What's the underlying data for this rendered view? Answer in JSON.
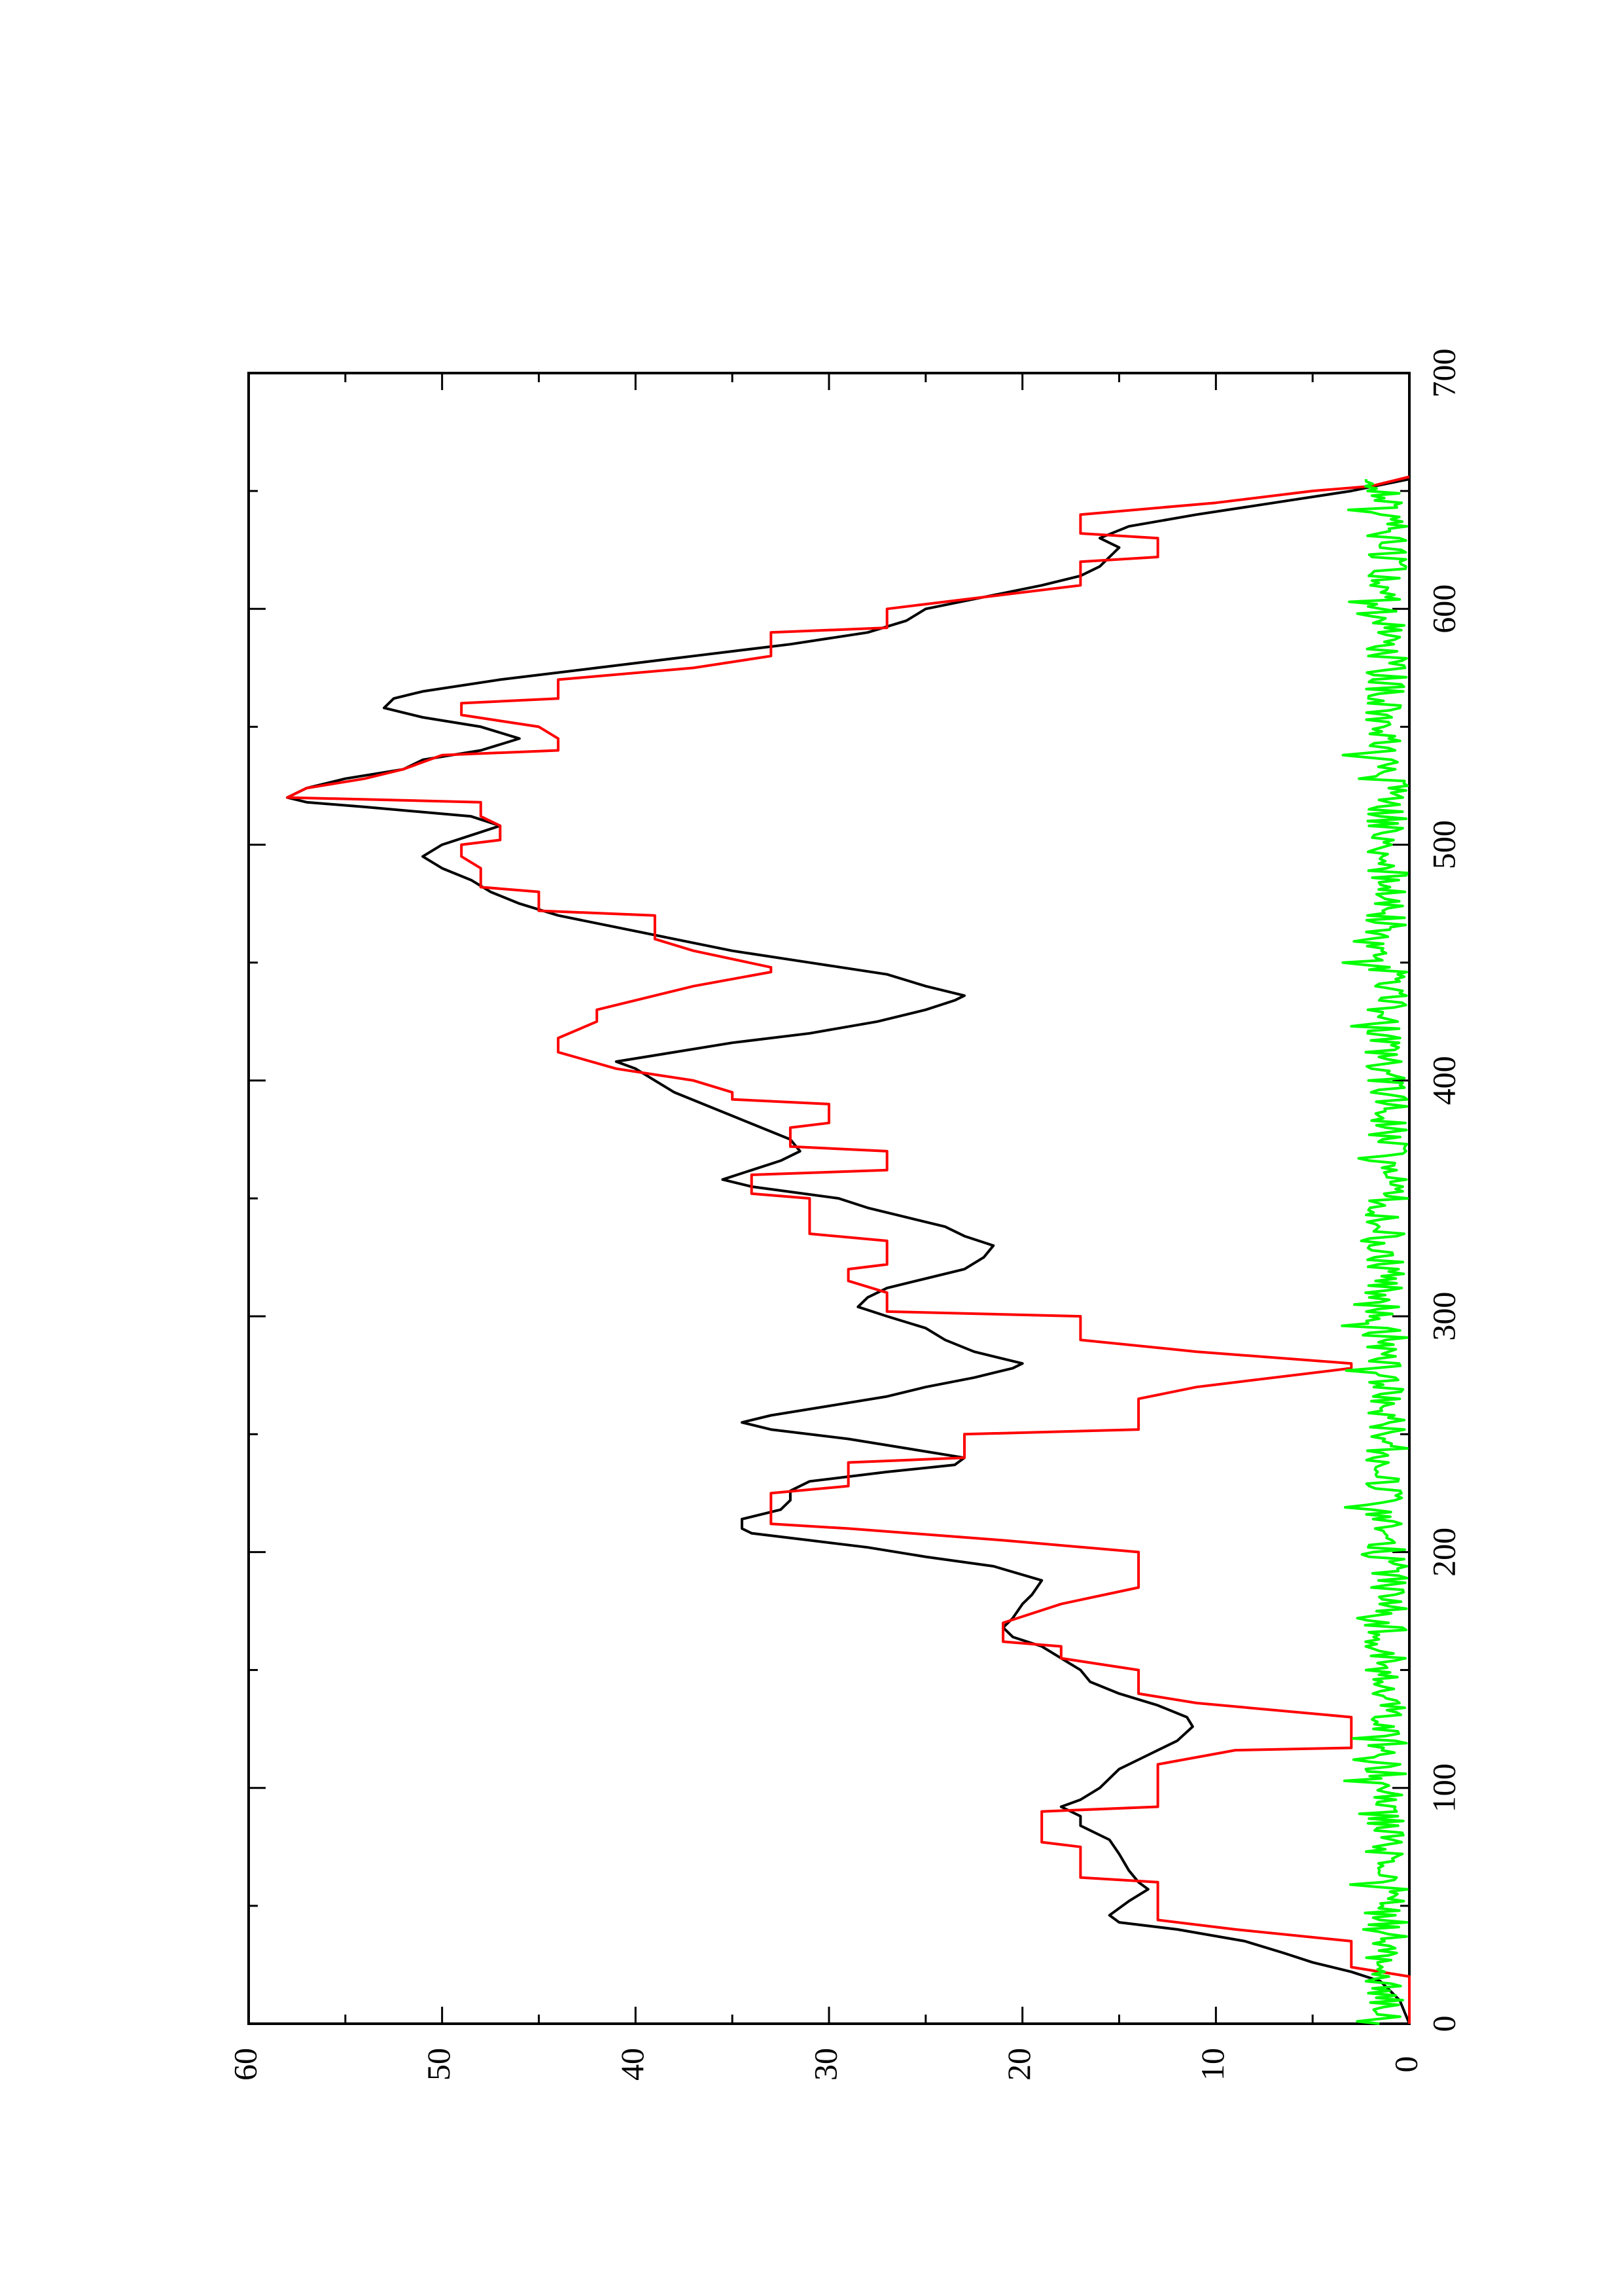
{
  "chart_data": {
    "type": "line",
    "orientation": "rotated-90-ccw",
    "title": "",
    "xlabel": "",
    "ylabel": "",
    "xlim": [
      0,
      700
    ],
    "ylim": [
      0,
      60
    ],
    "x_ticks": [
      0,
      100,
      200,
      300,
      400,
      500,
      600,
      700
    ],
    "x_minor_ticks": [
      50,
      150,
      250,
      350,
      450,
      550,
      650
    ],
    "y_ticks": [
      0,
      10,
      20,
      30,
      40,
      50,
      60
    ],
    "y_minor_ticks": [
      5,
      15,
      25,
      35,
      45,
      55
    ],
    "grid": false,
    "legend": "none",
    "series": [
      {
        "color": "#000000",
        "style": "line",
        "points": [
          [
            0,
            0
          ],
          [
            10,
            0.5
          ],
          [
            18,
            1.5
          ],
          [
            22,
            3
          ],
          [
            26,
            5
          ],
          [
            30,
            6.5
          ],
          [
            35,
            8.5
          ],
          [
            40,
            12
          ],
          [
            43,
            15
          ],
          [
            46,
            15.5
          ],
          [
            52,
            14.5
          ],
          [
            57,
            13.5
          ],
          [
            60,
            14
          ],
          [
            65,
            14.5
          ],
          [
            72,
            15
          ],
          [
            78,
            15.5
          ],
          [
            84,
            17
          ],
          [
            88,
            17
          ],
          [
            92,
            18
          ],
          [
            95,
            17
          ],
          [
            100,
            16
          ],
          [
            104,
            15.5
          ],
          [
            108,
            15
          ],
          [
            112,
            14
          ],
          [
            116,
            13
          ],
          [
            120,
            12
          ],
          [
            126,
            11.2
          ],
          [
            130,
            11.5
          ],
          [
            135,
            13
          ],
          [
            140,
            15
          ],
          [
            145,
            16.5
          ],
          [
            150,
            17
          ],
          [
            155,
            18
          ],
          [
            160,
            19
          ],
          [
            164,
            20.5
          ],
          [
            168,
            21
          ],
          [
            172,
            20.5
          ],
          [
            178,
            20
          ],
          [
            182,
            19.5
          ],
          [
            188,
            19
          ],
          [
            194,
            21.5
          ],
          [
            198,
            25
          ],
          [
            202,
            28
          ],
          [
            205,
            31
          ],
          [
            208,
            34
          ],
          [
            210,
            34.5
          ],
          [
            214,
            34.5
          ],
          [
            218,
            32.5
          ],
          [
            222,
            32
          ],
          [
            226,
            32
          ],
          [
            230,
            31
          ],
          [
            234,
            27
          ],
          [
            237,
            23.5
          ],
          [
            240,
            23
          ],
          [
            244,
            26
          ],
          [
            248,
            29
          ],
          [
            252,
            33
          ],
          [
            255,
            34.5
          ],
          [
            258,
            33
          ],
          [
            262,
            30
          ],
          [
            266,
            27
          ],
          [
            270,
            25
          ],
          [
            274,
            22.5
          ],
          [
            278,
            20.5
          ],
          [
            280,
            20
          ],
          [
            285,
            22.5
          ],
          [
            290,
            24
          ],
          [
            295,
            25
          ],
          [
            300,
            27
          ],
          [
            304,
            28.5
          ],
          [
            308,
            28
          ],
          [
            312,
            27
          ],
          [
            316,
            25
          ],
          [
            320,
            23
          ],
          [
            325,
            22
          ],
          [
            330,
            21.5
          ],
          [
            334,
            23
          ],
          [
            338,
            24
          ],
          [
            342,
            26
          ],
          [
            346,
            28
          ],
          [
            350,
            29.5
          ],
          [
            355,
            34
          ],
          [
            358,
            35.5
          ],
          [
            362,
            34
          ],
          [
            366,
            32.5
          ],
          [
            370,
            31.5
          ],
          [
            375,
            32
          ],
          [
            380,
            33.5
          ],
          [
            385,
            35
          ],
          [
            390,
            36.5
          ],
          [
            395,
            38
          ],
          [
            400,
            39
          ],
          [
            405,
            40
          ],
          [
            408,
            41
          ],
          [
            412,
            38
          ],
          [
            416,
            35
          ],
          [
            420,
            31
          ],
          [
            425,
            27.5
          ],
          [
            430,
            25
          ],
          [
            434,
            23.5
          ],
          [
            436,
            23
          ],
          [
            440,
            25
          ],
          [
            445,
            27
          ],
          [
            450,
            31
          ],
          [
            455,
            35
          ],
          [
            460,
            38
          ],
          [
            465,
            41
          ],
          [
            470,
            44
          ],
          [
            475,
            46
          ],
          [
            480,
            47.5
          ],
          [
            485,
            48.5
          ],
          [
            490,
            50
          ],
          [
            495,
            51
          ],
          [
            500,
            50
          ],
          [
            504,
            48.5
          ],
          [
            508,
            47
          ],
          [
            512,
            48.5
          ],
          [
            516,
            54
          ],
          [
            518,
            57
          ],
          [
            520,
            58
          ],
          [
            524,
            57
          ],
          [
            528,
            55
          ],
          [
            532,
            52
          ],
          [
            536,
            51
          ],
          [
            540,
            48
          ],
          [
            545,
            46
          ],
          [
            550,
            48
          ],
          [
            554,
            51
          ],
          [
            558,
            53
          ],
          [
            562,
            52.5
          ],
          [
            565,
            51
          ],
          [
            570,
            47
          ],
          [
            575,
            42
          ],
          [
            580,
            37
          ],
          [
            585,
            32
          ],
          [
            590,
            28
          ],
          [
            595,
            26
          ],
          [
            600,
            25
          ],
          [
            605,
            22
          ],
          [
            610,
            19
          ],
          [
            614,
            17
          ],
          [
            618,
            16
          ],
          [
            622,
            15.5
          ],
          [
            626,
            15
          ],
          [
            630,
            16
          ],
          [
            635,
            14.5
          ],
          [
            640,
            11
          ],
          [
            645,
            7
          ],
          [
            650,
            3
          ],
          [
            655,
            0
          ]
        ]
      },
      {
        "color": "#ff0000",
        "style": "step",
        "points": [
          [
            0,
            0
          ],
          [
            20,
            0
          ],
          [
            24,
            3
          ],
          [
            35,
            3
          ],
          [
            40,
            9
          ],
          [
            44,
            13
          ],
          [
            60,
            13
          ],
          [
            62,
            17
          ],
          [
            75,
            17
          ],
          [
            77,
            19
          ],
          [
            90,
            19
          ],
          [
            92,
            13
          ],
          [
            110,
            13
          ],
          [
            116,
            9
          ],
          [
            117,
            3
          ],
          [
            130,
            3
          ],
          [
            136,
            11
          ],
          [
            140,
            14
          ],
          [
            150,
            14
          ],
          [
            155,
            18
          ],
          [
            160,
            18
          ],
          [
            162,
            21
          ],
          [
            170,
            21
          ],
          [
            178,
            18
          ],
          [
            185,
            14
          ],
          [
            200,
            14
          ],
          [
            205,
            21
          ],
          [
            210,
            29
          ],
          [
            212,
            33
          ],
          [
            225,
            33
          ],
          [
            228,
            29
          ],
          [
            238,
            29
          ],
          [
            240,
            23
          ],
          [
            250,
            23
          ],
          [
            252,
            14
          ],
          [
            265,
            14
          ],
          [
            270,
            11
          ],
          [
            272,
            9
          ],
          [
            278,
            3
          ],
          [
            280,
            3
          ],
          [
            285,
            11
          ],
          [
            290,
            17
          ],
          [
            300,
            17
          ],
          [
            302,
            27
          ],
          [
            310,
            27
          ],
          [
            315,
            29
          ],
          [
            320,
            29
          ],
          [
            322,
            27
          ],
          [
            332,
            27
          ],
          [
            335,
            31
          ],
          [
            350,
            31
          ],
          [
            352,
            34
          ],
          [
            360,
            34
          ],
          [
            362,
            27
          ],
          [
            370,
            27
          ],
          [
            372,
            32
          ],
          [
            380,
            32
          ],
          [
            382,
            30
          ],
          [
            390,
            30
          ],
          [
            392,
            35
          ],
          [
            395,
            35
          ],
          [
            400,
            37
          ],
          [
            405,
            41
          ],
          [
            412,
            44
          ],
          [
            418,
            44
          ],
          [
            425,
            42
          ],
          [
            430,
            42
          ],
          [
            440,
            37
          ],
          [
            446,
            33
          ],
          [
            448,
            33
          ],
          [
            455,
            37
          ],
          [
            460,
            39
          ],
          [
            470,
            39
          ],
          [
            472,
            45
          ],
          [
            480,
            45
          ],
          [
            482,
            48
          ],
          [
            490,
            48
          ],
          [
            495,
            49
          ],
          [
            500,
            49
          ],
          [
            502,
            47
          ],
          [
            508,
            47
          ],
          [
            512,
            48
          ],
          [
            518,
            48
          ],
          [
            520,
            58
          ],
          [
            524,
            57
          ],
          [
            528,
            54
          ],
          [
            532,
            52
          ],
          [
            538,
            50
          ],
          [
            540,
            44
          ],
          [
            545,
            44
          ],
          [
            550,
            45
          ],
          [
            555,
            49
          ],
          [
            560,
            49
          ],
          [
            562,
            44
          ],
          [
            570,
            44
          ],
          [
            575,
            37
          ],
          [
            580,
            33
          ],
          [
            590,
            33
          ],
          [
            592,
            27
          ],
          [
            600,
            27
          ],
          [
            610,
            17
          ],
          [
            620,
            17
          ],
          [
            622,
            13
          ],
          [
            630,
            13
          ],
          [
            632,
            17
          ],
          [
            640,
            17
          ],
          [
            645,
            10
          ],
          [
            650,
            5
          ],
          [
            652,
            2
          ],
          [
            656,
            0
          ]
        ]
      },
      {
        "color": "#00ff00",
        "style": "line",
        "generated": "dense noisy trace",
        "x_range": [
          0,
          655
        ],
        "value_range": [
          0,
          3.5
        ],
        "mean": 1.2
      }
    ]
  }
}
